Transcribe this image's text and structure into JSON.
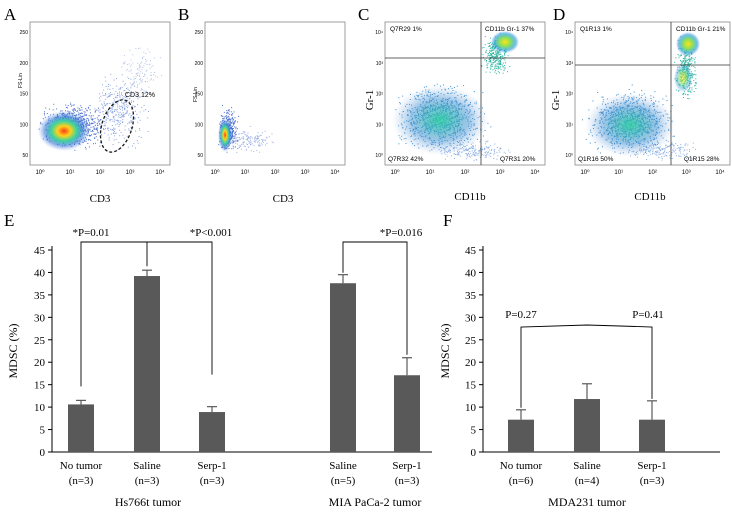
{
  "panels": {
    "A": {
      "letter": "A",
      "xlabel": "CD3",
      "ylabel": "FS-Lin",
      "gate_label": "CD3 12%",
      "yticks": [
        "250",
        "200",
        "150",
        "100",
        "50"
      ],
      "xticks": [
        "10⁰",
        "10¹",
        "10²",
        "10³",
        "10⁴"
      ]
    },
    "B": {
      "letter": "B",
      "xlabel": "CD3",
      "ylabel": "FS-Lin",
      "yticks": [
        "250",
        "200",
        "150",
        "100",
        "50"
      ],
      "xticks": [
        "10⁰",
        "10¹",
        "10²",
        "10³",
        "10⁴"
      ]
    },
    "C": {
      "letter": "C",
      "xlabel": "CD11b",
      "ylabel": "Gr-1",
      "q_ul": "Q7R29 1%",
      "q_ur": "CD11b Gr-1 37%",
      "q_ll": "Q7R32 42%",
      "q_lr": "Q7R31 20%",
      "yticks": [
        "10⁴",
        "10³",
        "10²",
        "10¹",
        "10⁰"
      ],
      "xticks": [
        "10⁰",
        "10¹",
        "10²",
        "10³",
        "10⁴"
      ]
    },
    "D": {
      "letter": "D",
      "xlabel": "CD11b",
      "ylabel": "Gr-1",
      "q_ul": "Q1R13 1%",
      "q_ur": "CD11b Gr-1 21%",
      "q_ll": "Q1R16 50%",
      "q_lr": "Q1R15 28%",
      "yticks": [
        "10⁴",
        "10³",
        "10²",
        "10¹",
        "10⁰"
      ],
      "xticks": [
        "10⁰",
        "10¹",
        "10²",
        "10³",
        "10⁴"
      ]
    }
  },
  "colors": {
    "bar": "#595959",
    "axis": "#000000",
    "gate": "#1a1a1a"
  },
  "chart_data": [
    {
      "type": "bar",
      "panel": "E",
      "ylabel": "MDSC (%)",
      "ylim": [
        0,
        45
      ],
      "yticks": [
        0,
        5,
        10,
        15,
        20,
        25,
        30,
        35,
        40,
        45
      ],
      "groups": [
        {
          "title": "Hs766t  tumor",
          "categories": [
            {
              "name": "No tumor",
              "n": "(n=3)"
            },
            {
              "name": "Saline",
              "n": "(n=3)"
            },
            {
              "name": "Serp-1",
              "n": "(n=3)"
            }
          ],
          "values": [
            10.6,
            39.2,
            8.9
          ],
          "errors": [
            0.9,
            1.3,
            1.2
          ]
        },
        {
          "title": "MIA PaCa-2 tumor",
          "categories": [
            {
              "name": "Saline",
              "n": "(n=5)"
            },
            {
              "name": "Serp-1",
              "n": "(n=3)"
            }
          ],
          "values": [
            37.6,
            17.1
          ],
          "errors": [
            1.9,
            3.9
          ]
        }
      ],
      "annotations": [
        "*P=0.01",
        "*P<0.001",
        "*P=0.016"
      ]
    },
    {
      "type": "bar",
      "panel": "F",
      "ylabel": "MDSC (%)",
      "ylim": [
        0,
        45
      ],
      "yticks": [
        0,
        5,
        10,
        15,
        20,
        25,
        30,
        35,
        40,
        45
      ],
      "groups": [
        {
          "title": "MDA231 tumor",
          "categories": [
            {
              "name": "No tumor",
              "n": "(n=6)"
            },
            {
              "name": "Saline",
              "n": "(n=4)"
            },
            {
              "name": "Serp-1",
              "n": "(n=3)"
            }
          ],
          "values": [
            7.2,
            11.8,
            7.2
          ],
          "errors": [
            2.2,
            3.4,
            4.2
          ]
        }
      ],
      "annotations": [
        "P=0.27",
        "P=0.41"
      ]
    }
  ]
}
